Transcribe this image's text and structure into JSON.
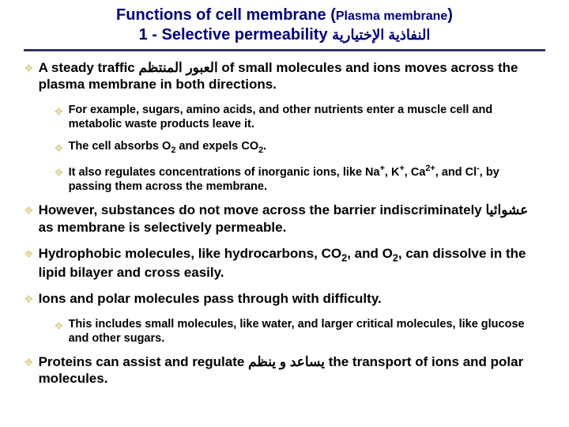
{
  "title": {
    "main_pre": "Functions of cell membrane (",
    "main_small": "Plasma membrane",
    "main_post": ")",
    "sub_pre": "1 - Selective permeability ",
    "sub_arabic": "النفاذية الإختيارية"
  },
  "bullets": [
    {
      "level": 0,
      "html": "A steady traffic <span class='arabic-inset'>العبور المنتظم</span> of small molecules and ions moves across the plasma membrane in both directions."
    },
    {
      "level": 1,
      "html": "For example, sugars, amino acids, and other nutrients enter a muscle cell and metabolic waste products leave it."
    },
    {
      "level": 1,
      "html": "The cell absorbs O<sub>2</sub> and expels CO<sub>2</sub>."
    },
    {
      "level": 1,
      "html": "It also regulates concentrations of inorganic ions, like Na<sup>+</sup>, K<sup>+</sup>, Ca<sup>2+</sup>, and Cl<sup>-</sup>, by passing them across the membrane."
    },
    {
      "level": 0,
      "html": "However, substances do not move across the barrier indiscriminately <span class='arabic-inset'>عشوائيا</span>&nbsp; as membrane is selectively permeable."
    },
    {
      "level": 0,
      "html": "Hydrophobic molecules, like hydrocarbons, CO<sub>2</sub>, and O<sub>2</sub>, can dissolve in the lipid bilayer and cross easily."
    },
    {
      "level": 0,
      "html": "Ions and polar molecules pass through with difficulty."
    },
    {
      "level": 1,
      "html": "This includes small molecules, like water, and larger critical molecules, like glucose and other sugars."
    },
    {
      "level": 0,
      "html": "Proteins can assist and regulate <span class='arabic-inset'>يساعد و ينظم</span> the transport of ions and polar molecules."
    }
  ],
  "colors": {
    "title_color": "#000080",
    "diamond_color": "#e0d090",
    "rule_color": "#333366",
    "text_color": "#000000",
    "bg_color": "#ffffff"
  },
  "fonts": {
    "title_size_pt": 15,
    "body_size_pt": 13,
    "sub_size_pt": 11
  }
}
